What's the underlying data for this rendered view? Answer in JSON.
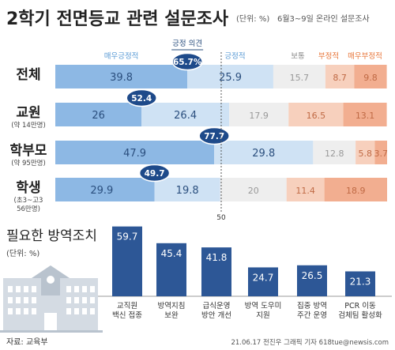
{
  "header": {
    "title": "2학기 전면등교 관련 설문조사",
    "unit": "(단위: %)",
    "survey": "6월3~9일 온라인 설문조사"
  },
  "colors": {
    "very_positive": "#8db8e4",
    "positive": "#cfe2f4",
    "neutral": "#eeeeee",
    "negative": "#f7d0bd",
    "very_negative": "#f2ae90",
    "dark_blue": "#1e4a8a",
    "bar_blue": "#2d5796",
    "legend_blue": "#5b9bd5",
    "legend_orange": "#e8763a",
    "legend_gray": "#888888"
  },
  "chart_data": [
    {
      "type": "bar",
      "orientation": "horizontal-stacked",
      "legend": {
        "very_positive": "매우긍정적",
        "positive": "긍정적",
        "neutral": "보통",
        "negative": "부정적",
        "very_negative": "매우부정적",
        "positive_total": "긍정 의견"
      },
      "midline_label": "50",
      "rows": [
        {
          "label": "전체",
          "sub": "",
          "very_positive": 39.8,
          "positive": 25.9,
          "neutral": 15.7,
          "negative": 8.7,
          "very_negative": 9.8,
          "positive_total": "65.7%"
        },
        {
          "label": "교원",
          "sub": "(약 14만명)",
          "very_positive": 26.0,
          "positive": 26.4,
          "neutral": 17.9,
          "negative": 16.5,
          "very_negative": 13.1,
          "positive_total": "52.4"
        },
        {
          "label": "학부모",
          "sub": "(약 95만명)",
          "very_positive": 47.9,
          "positive": 29.8,
          "neutral": 12.8,
          "negative": 5.8,
          "very_negative": 3.7,
          "positive_total": "77.7"
        },
        {
          "label": "학생",
          "sub": "(초3~고3\n56만명)",
          "very_positive": 29.9,
          "positive": 19.8,
          "neutral": 20,
          "negative": 11.4,
          "very_negative": 18.9,
          "positive_total": "49.7"
        }
      ]
    },
    {
      "type": "bar",
      "title": "필요한 방역조치",
      "unit": "(단위: %)",
      "categories": [
        "교직원\n백신 접종",
        "방역지침\n보완",
        "급식운영\n방안 개선",
        "방역 도우미\n지원",
        "집중 방역\n주간 운영",
        "PCR 이동\n검체팀 활성화"
      ],
      "values": [
        59.7,
        45.4,
        41.8,
        24.7,
        26.5,
        21.3
      ]
    }
  ],
  "footer": {
    "source": "자료: 교육부",
    "credit": "21.06.17 전진우 그래픽 기자 618tue@newsis.com"
  }
}
